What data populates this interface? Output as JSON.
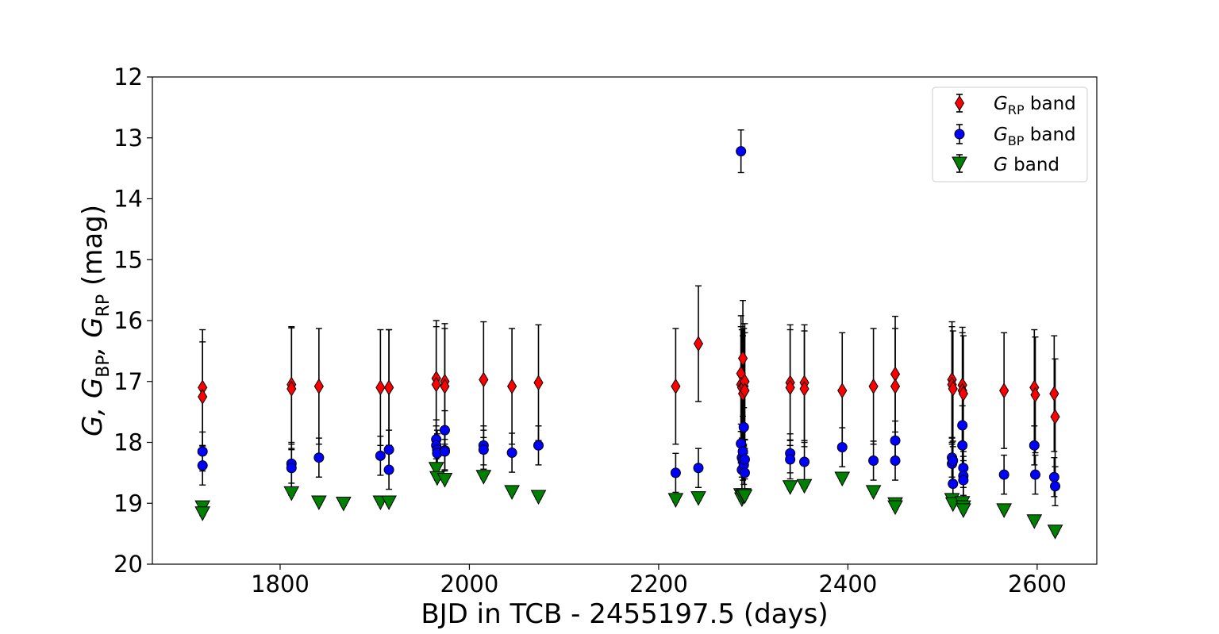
{
  "chart_data": {
    "type": "scatter",
    "title": "",
    "xlabel": "BJD in TCB - 2455197.5 (days)",
    "ylabel": {
      "main": "G, G",
      "sub_bp": "BP",
      "sep": ", G",
      "sub_rp": "RP",
      "unit": " (mag)"
    },
    "xlim": [
      1665,
      2663
    ],
    "ylim": [
      20,
      12
    ],
    "y_inverted": true,
    "xticks": [
      1800,
      2000,
      2200,
      2400,
      2600
    ],
    "xtick_labels": [
      "1800",
      "2000",
      "2200",
      "2400",
      "2600"
    ],
    "yticks": [
      12,
      13,
      14,
      15,
      16,
      17,
      18,
      19,
      20
    ],
    "ytick_labels": [
      "12",
      "13",
      "14",
      "15",
      "16",
      "17",
      "18",
      "19",
      "20"
    ],
    "grid": false,
    "legend_position": "top-right",
    "series": [
      {
        "name": "G_RP band",
        "legend": {
          "prefix": "G",
          "sub": "RP",
          "suffix": " band"
        },
        "marker": "diamond",
        "color": "#ff0000",
        "x": [
          1718,
          1718,
          1812,
          1812,
          1841,
          1906,
          1915,
          1915,
          1965,
          1965,
          1974,
          1974,
          2015,
          2045,
          2073,
          2218,
          2242,
          2287,
          2287,
          2288,
          2289,
          2289,
          2290,
          2291,
          2291,
          2339,
          2339,
          2354,
          2354,
          2394,
          2427,
          2450,
          2450,
          2510,
          2510,
          2511,
          2521,
          2521,
          2522,
          2565,
          2597,
          2598,
          2618,
          2619
        ],
        "y": [
          17.1,
          17.25,
          17.05,
          17.12,
          17.08,
          17.1,
          17.1,
          17.1,
          16.95,
          17.05,
          17.0,
          17.08,
          16.97,
          17.08,
          17.02,
          17.08,
          16.38,
          16.87,
          17.05,
          17.1,
          16.62,
          17.2,
          17.08,
          17.0,
          17.15,
          17.02,
          17.1,
          17.02,
          17.12,
          17.15,
          17.08,
          16.88,
          17.08,
          16.97,
          17.05,
          17.12,
          17.06,
          17.15,
          17.2,
          17.15,
          17.1,
          17.22,
          17.2,
          17.58
        ],
        "yerr": [
          0.95,
          0.9,
          0.95,
          1.0,
          0.95,
          0.95,
          0.95,
          0.95,
          0.95,
          0.95,
          0.95,
          0.95,
          0.95,
          0.95,
          0.95,
          0.95,
          0.95,
          0.95,
          0.95,
          0.95,
          0.95,
          0.95,
          0.95,
          0.95,
          0.95,
          0.95,
          0.95,
          0.95,
          0.95,
          0.95,
          0.95,
          0.95,
          0.95,
          0.95,
          0.95,
          0.95,
          0.95,
          0.95,
          0.95,
          0.95,
          0.95,
          0.95,
          0.95,
          0.95
        ]
      },
      {
        "name": "G_BP band",
        "legend": {
          "prefix": "G",
          "sub": "BP",
          "suffix": " band"
        },
        "marker": "circle",
        "color": "#0000ff",
        "x": [
          1718,
          1718,
          1812,
          1812,
          1841,
          1906,
          1915,
          1915,
          1965,
          1965,
          1966,
          1966,
          1974,
          1974,
          1974,
          2015,
          2015,
          2045,
          2073,
          2218,
          2242,
          2287,
          2287,
          2288,
          2288,
          2289,
          2289,
          2290,
          2290,
          2291,
          2291,
          2339,
          2339,
          2354,
          2394,
          2427,
          2450,
          2450,
          2510,
          2510,
          2511,
          2511,
          2521,
          2521,
          2522,
          2522,
          2522,
          2565,
          2597,
          2598,
          2618,
          2619
        ],
        "y": [
          18.15,
          18.38,
          18.35,
          18.42,
          18.25,
          18.22,
          18.45,
          18.12,
          17.95,
          18.05,
          18.12,
          18.18,
          17.8,
          18.13,
          18.15,
          18.05,
          18.12,
          18.17,
          18.05,
          18.5,
          18.42,
          13.22,
          18.02,
          18.25,
          18.45,
          18.15,
          18.3,
          17.75,
          18.37,
          18.28,
          18.5,
          18.18,
          18.28,
          18.32,
          18.08,
          18.3,
          17.97,
          18.3,
          18.25,
          18.35,
          18.3,
          18.68,
          17.72,
          18.05,
          18.42,
          18.55,
          18.62,
          18.53,
          18.05,
          18.53,
          18.57,
          18.72
        ],
        "yerr": [
          0.32,
          0.32,
          0.32,
          0.32,
          0.32,
          0.32,
          0.32,
          0.32,
          0.32,
          0.32,
          0.32,
          0.32,
          0.32,
          0.32,
          0.32,
          0.32,
          0.32,
          0.32,
          0.32,
          0.32,
          0.32,
          0.35,
          0.32,
          0.32,
          0.32,
          0.32,
          0.32,
          0.32,
          0.32,
          0.32,
          0.32,
          0.32,
          0.32,
          0.32,
          0.32,
          0.32,
          0.32,
          0.32,
          0.32,
          0.32,
          0.32,
          0.32,
          0.32,
          0.32,
          0.32,
          0.32,
          0.32,
          0.32,
          0.32,
          0.32,
          0.32,
          0.32
        ]
      },
      {
        "name": "G band",
        "legend": {
          "prefix": "G",
          "sub": "",
          "suffix": " band"
        },
        "marker": "triangle-down",
        "color": "#008000",
        "x": [
          1718,
          1718,
          1812,
          1841,
          1867,
          1906,
          1915,
          1965,
          1966,
          1974,
          2015,
          2045,
          2073,
          2218,
          2242,
          2287,
          2288,
          2289,
          2290,
          2291,
          2339,
          2354,
          2394,
          2427,
          2450,
          2450,
          2510,
          2511,
          2521,
          2522,
          2522,
          2565,
          2597,
          2619
        ],
        "y": [
          19.05,
          19.15,
          18.82,
          18.97,
          18.99,
          18.97,
          18.97,
          18.42,
          18.57,
          18.6,
          18.55,
          18.8,
          18.88,
          18.93,
          18.9,
          18.85,
          18.92,
          18.88,
          18.85,
          18.87,
          18.72,
          18.7,
          18.58,
          18.8,
          19.0,
          19.05,
          18.93,
          19.0,
          18.98,
          19.05,
          19.1,
          19.1,
          19.28,
          19.45
        ],
        "yerr": [
          0.05,
          0.05,
          0.05,
          0.05,
          0.05,
          0.05,
          0.05,
          0.05,
          0.05,
          0.05,
          0.05,
          0.05,
          0.05,
          0.05,
          0.05,
          0.05,
          0.05,
          0.05,
          0.05,
          0.05,
          0.05,
          0.05,
          0.05,
          0.05,
          0.05,
          0.05,
          0.05,
          0.05,
          0.05,
          0.05,
          0.05,
          0.05,
          0.05,
          0.05
        ]
      }
    ]
  }
}
